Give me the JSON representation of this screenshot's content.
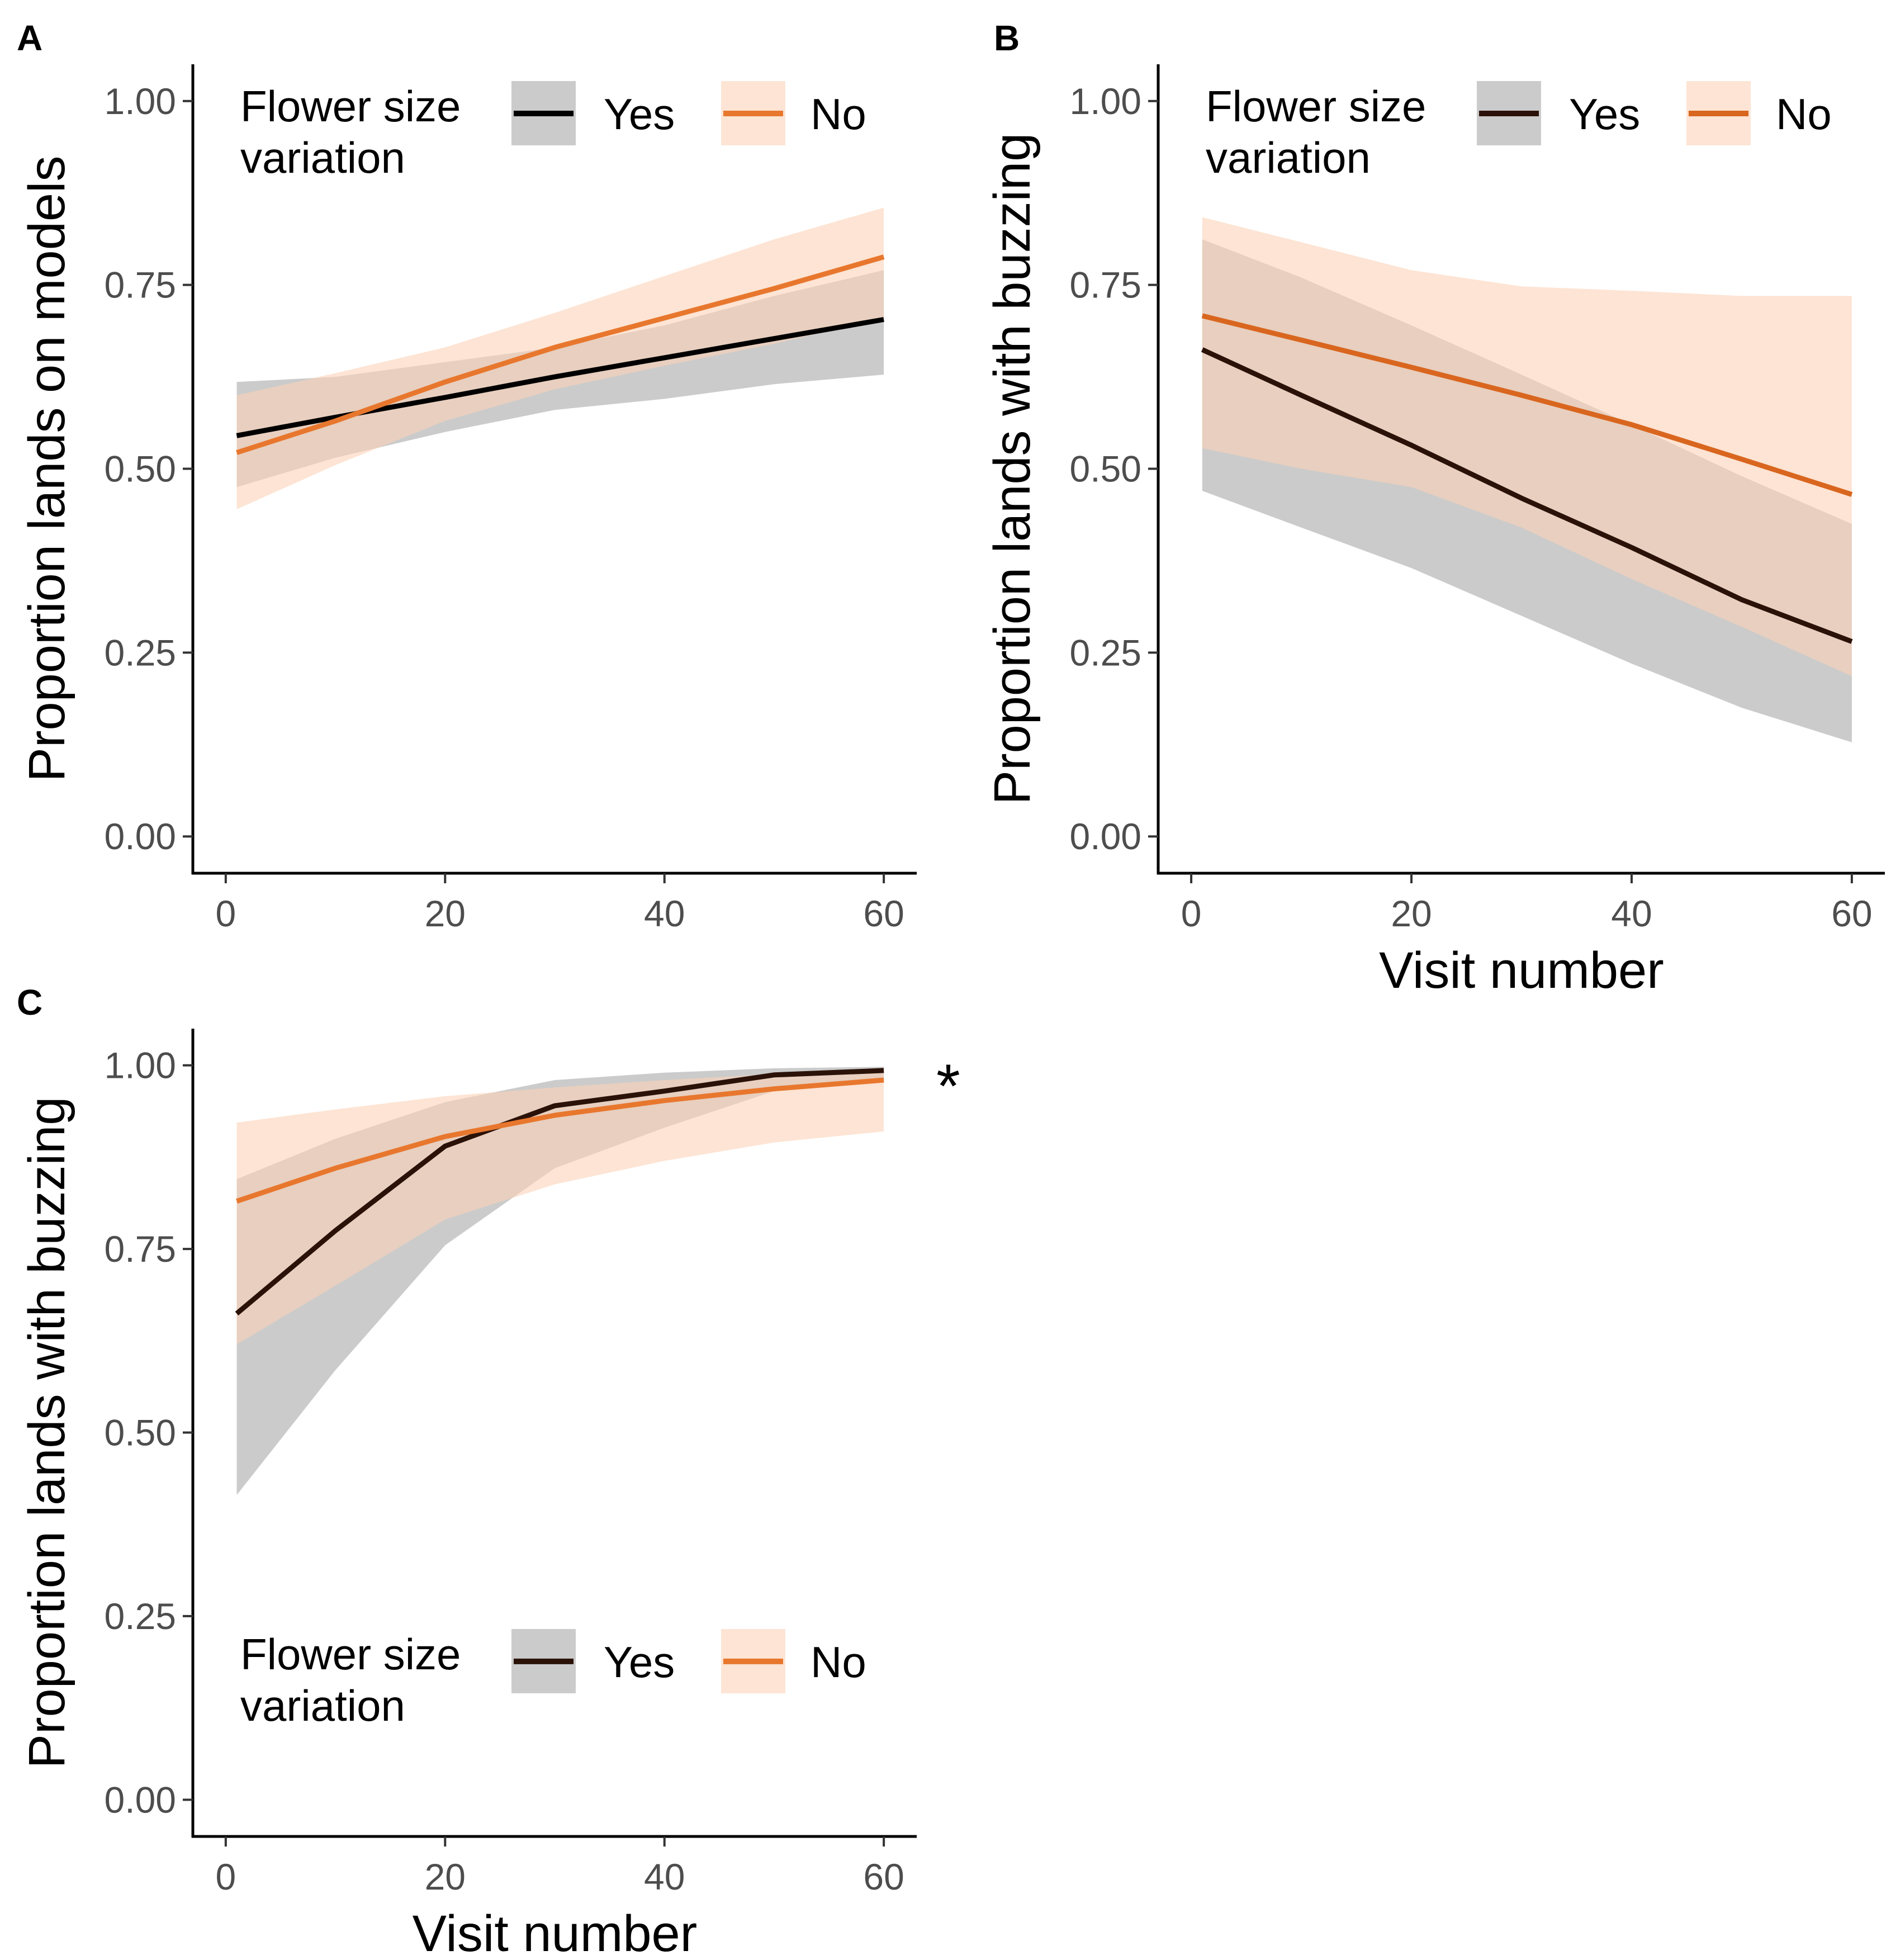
{
  "chart_data": [
    {
      "panel": "A",
      "type": "line",
      "ylabel": "Proportion lands on models",
      "xlabel": "",
      "xticks": [
        "0",
        "20",
        "40",
        "60"
      ],
      "yticks": [
        "0.00",
        "0.25",
        "0.50",
        "0.75",
        "1.00"
      ],
      "xlim": [
        -3,
        63
      ],
      "ylim": [
        -0.05,
        1.05
      ],
      "legend": {
        "title_line1": "Flower size",
        "title_line2": "variation",
        "position": "top"
      },
      "series": [
        {
          "name": "Yes",
          "color": "#000000",
          "band_color": "#bdbdbd",
          "x": [
            1,
            10,
            20,
            30,
            40,
            50,
            60
          ],
          "y": [
            0.545,
            0.57,
            0.597,
            0.625,
            0.651,
            0.677,
            0.703
          ],
          "lower": [
            0.475,
            0.515,
            0.55,
            0.58,
            0.595,
            0.615,
            0.628
          ],
          "upper": [
            0.618,
            0.625,
            0.645,
            0.665,
            0.695,
            0.735,
            0.77
          ]
        },
        {
          "name": "No",
          "color": "#e8772e",
          "band_color": "#fbd2b8",
          "x": [
            1,
            10,
            20,
            30,
            40,
            50,
            60
          ],
          "y": [
            0.522,
            0.565,
            0.618,
            0.665,
            0.705,
            0.745,
            0.788
          ],
          "lower": [
            0.445,
            0.505,
            0.565,
            0.608,
            0.64,
            0.67,
            0.705
          ],
          "upper": [
            0.6,
            0.63,
            0.665,
            0.712,
            0.762,
            0.812,
            0.855
          ]
        }
      ]
    },
    {
      "panel": "B",
      "type": "line",
      "ylabel": "Proportion lands with buzzing",
      "xlabel": "Visit number",
      "xticks": [
        "0",
        "20",
        "40",
        "60"
      ],
      "yticks": [
        "0.00",
        "0.25",
        "0.50",
        "0.75",
        "1.00"
      ],
      "xlim": [
        -3,
        63
      ],
      "ylim": [
        -0.05,
        1.05
      ],
      "legend": {
        "title_line1": "Flower size",
        "title_line2": "variation",
        "position": "top"
      },
      "series": [
        {
          "name": "Yes",
          "color": "#2b1208",
          "band_color": "#bdbdbd",
          "x": [
            1,
            10,
            20,
            30,
            40,
            50,
            60
          ],
          "y": [
            0.662,
            0.6,
            0.532,
            0.46,
            0.393,
            0.322,
            0.265
          ],
          "lower": [
            0.47,
            0.42,
            0.365,
            0.3,
            0.235,
            0.175,
            0.128
          ],
          "upper": [
            0.812,
            0.76,
            0.695,
            0.628,
            0.56,
            0.49,
            0.425
          ]
        },
        {
          "name": "No",
          "color": "#d9661f",
          "band_color": "#fbd2b8",
          "x": [
            1,
            10,
            20,
            30,
            40,
            50,
            60
          ],
          "y": [
            0.708,
            0.675,
            0.638,
            0.6,
            0.56,
            0.513,
            0.465
          ],
          "lower": [
            0.528,
            0.5,
            0.475,
            0.42,
            0.35,
            0.285,
            0.218
          ],
          "upper": [
            0.842,
            0.808,
            0.77,
            0.748,
            0.742,
            0.735,
            0.735
          ]
        }
      ]
    },
    {
      "panel": "C",
      "type": "line",
      "ylabel": "Proportion lands with buzzing",
      "xlabel": "Visit number",
      "annotation": "*",
      "xticks": [
        "0",
        "20",
        "40",
        "60"
      ],
      "yticks": [
        "0.00",
        "0.25",
        "0.50",
        "0.75",
        "1.00"
      ],
      "xlim": [
        -3,
        63
      ],
      "ylim": [
        -0.05,
        1.05
      ],
      "legend": {
        "title_line1": "Flower size",
        "title_line2": "variation",
        "position": "bottom"
      },
      "series": [
        {
          "name": "Yes",
          "color": "#2b1208",
          "band_color": "#bdbdbd",
          "x": [
            1,
            10,
            20,
            30,
            40,
            50,
            60
          ],
          "y": [
            0.662,
            0.775,
            0.89,
            0.945,
            0.965,
            0.987,
            0.993
          ],
          "lower": [
            0.415,
            0.585,
            0.755,
            0.86,
            0.915,
            0.965,
            0.98
          ],
          "upper": [
            0.845,
            0.9,
            0.95,
            0.98,
            0.99,
            0.996,
            0.998
          ]
        },
        {
          "name": "No",
          "color": "#e8772e",
          "band_color": "#fbd2b8",
          "x": [
            1,
            10,
            20,
            30,
            40,
            50,
            60
          ],
          "y": [
            0.815,
            0.86,
            0.903,
            0.932,
            0.952,
            0.968,
            0.98
          ],
          "lower": [
            0.62,
            0.7,
            0.79,
            0.838,
            0.87,
            0.895,
            0.91
          ],
          "upper": [
            0.922,
            0.94,
            0.958,
            0.97,
            0.98,
            0.988,
            0.993
          ]
        }
      ]
    }
  ]
}
